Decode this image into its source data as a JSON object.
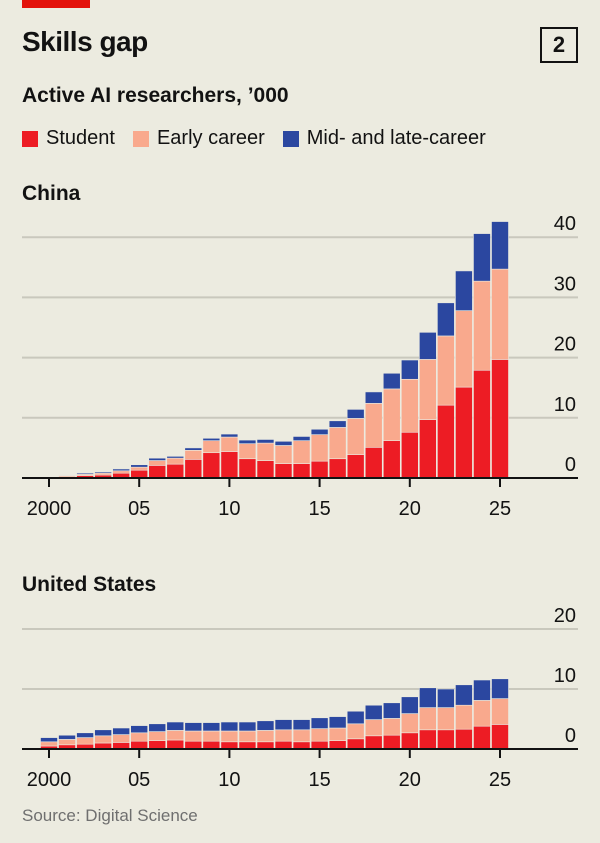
{
  "header": {
    "title": "Skills gap",
    "chart_number": "2",
    "subtitle": "Active AI researchers, ’000"
  },
  "legend": [
    {
      "label": "Student",
      "color": "#ed1c24"
    },
    {
      "label": "Early career",
      "color": "#f9a98d"
    },
    {
      "label": "Mid- and late-career",
      "color": "#2b47a0"
    }
  ],
  "source": "Source: Digital Science",
  "chart_data": [
    {
      "type": "bar",
      "stacked": true,
      "title": "China",
      "ylim": [
        0,
        40
      ],
      "yticks": [
        0,
        10,
        20,
        30,
        40
      ],
      "xtick_labels": [
        "2000",
        "05",
        "10",
        "15",
        "20",
        "25"
      ],
      "xtick_years": [
        2000,
        2005,
        2010,
        2015,
        2020,
        2025
      ],
      "grid": true,
      "categories": [
        2000,
        2001,
        2002,
        2003,
        2004,
        2005,
        2006,
        2007,
        2008,
        2009,
        2010,
        2011,
        2012,
        2013,
        2014,
        2015,
        2016,
        2017,
        2018,
        2019,
        2020,
        2021,
        2022,
        2023,
        2024,
        2025
      ],
      "series": [
        {
          "name": "Student",
          "values": [
            0.1,
            0.2,
            0.4,
            0.5,
            0.8,
            1.3,
            2.1,
            2.3,
            3.1,
            4.2,
            4.4,
            3.2,
            2.9,
            2.4,
            2.4,
            2.8,
            3.2,
            3.9,
            5.1,
            6.2,
            7.6,
            9.7,
            12.1,
            15.1,
            17.9,
            19.7
          ]
        },
        {
          "name": "Early career",
          "values": [
            0.1,
            0.2,
            0.2,
            0.3,
            0.4,
            0.5,
            0.8,
            1.0,
            1.5,
            2.0,
            2.4,
            2.5,
            2.9,
            3.0,
            3.8,
            4.4,
            5.2,
            6.0,
            7.3,
            8.6,
            8.8,
            10.0,
            11.5,
            12.7,
            14.8,
            15.0
          ]
        },
        {
          "name": "Mid- and late-career",
          "values": [
            0.1,
            0.1,
            0.2,
            0.2,
            0.3,
            0.4,
            0.4,
            0.3,
            0.4,
            0.4,
            0.5,
            0.6,
            0.6,
            0.7,
            0.7,
            0.9,
            1.1,
            1.5,
            1.9,
            2.6,
            3.2,
            4.5,
            5.5,
            6.6,
            7.9,
            7.9
          ]
        }
      ]
    },
    {
      "type": "bar",
      "stacked": true,
      "title": "United States",
      "ylim": [
        0,
        20
      ],
      "yticks": [
        0,
        10,
        20
      ],
      "xtick_labels": [
        "2000",
        "05",
        "10",
        "15",
        "20",
        "25"
      ],
      "xtick_years": [
        2000,
        2005,
        2010,
        2015,
        2020,
        2025
      ],
      "grid": true,
      "categories": [
        2000,
        2001,
        2002,
        2003,
        2004,
        2005,
        2006,
        2007,
        2008,
        2009,
        2010,
        2011,
        2012,
        2013,
        2014,
        2015,
        2016,
        2017,
        2018,
        2019,
        2020,
        2021,
        2022,
        2023,
        2024,
        2025
      ],
      "series": [
        {
          "name": "Student",
          "values": [
            0.5,
            0.7,
            0.8,
            1.0,
            1.1,
            1.3,
            1.4,
            1.5,
            1.3,
            1.3,
            1.2,
            1.2,
            1.2,
            1.3,
            1.2,
            1.3,
            1.4,
            1.7,
            2.2,
            2.3,
            2.7,
            3.2,
            3.2,
            3.3,
            3.8,
            4.1
          ]
        },
        {
          "name": "Early career",
          "values": [
            0.7,
            0.9,
            1.1,
            1.2,
            1.3,
            1.4,
            1.5,
            1.6,
            1.7,
            1.7,
            1.8,
            1.8,
            1.9,
            1.9,
            2.0,
            2.1,
            2.1,
            2.5,
            2.7,
            2.8,
            3.2,
            3.7,
            3.7,
            4.0,
            4.3,
            4.3
          ]
        },
        {
          "name": "Mid- and late-career",
          "values": [
            0.7,
            0.7,
            0.8,
            1.0,
            1.1,
            1.2,
            1.3,
            1.4,
            1.4,
            1.4,
            1.5,
            1.5,
            1.6,
            1.7,
            1.7,
            1.8,
            1.9,
            2.1,
            2.4,
            2.6,
            2.8,
            3.3,
            3.1,
            3.4,
            3.4,
            3.3
          ]
        }
      ]
    }
  ]
}
